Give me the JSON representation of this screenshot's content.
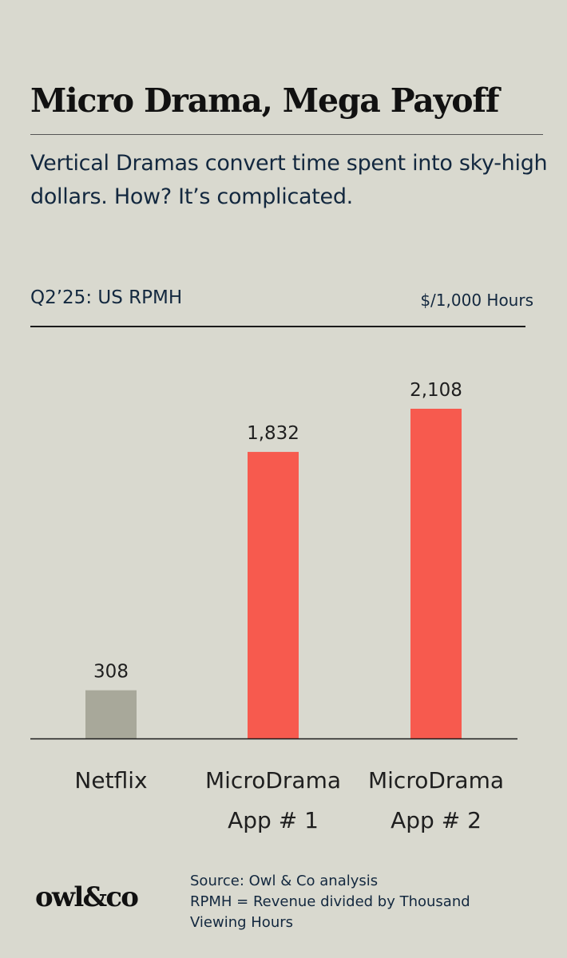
{
  "header": {
    "title": "Micro Drama, Mega Payoff",
    "subtitle": "Vertical Dramas convert time spent into sky-high dollars. How? It’s complicated."
  },
  "chart_data": {
    "type": "bar",
    "title": "Q2’25: US RPMH",
    "unit_label": "$/1,000 Hours",
    "categories": [
      "Netflix",
      "MicroDrama App # 1",
      "MicroDrama App # 2"
    ],
    "category_lines": [
      [
        "Netflix"
      ],
      [
        "MicroDrama",
        "App # 1"
      ],
      [
        "MicroDrama",
        "App # 2"
      ]
    ],
    "values": [
      308,
      1832,
      2108
    ],
    "value_labels": [
      "308",
      "1,832",
      "2,108"
    ],
    "ylim": [
      0,
      2108
    ],
    "colors": [
      "#a8a89a",
      "#f75a4e",
      "#f75a4e"
    ],
    "grid": false
  },
  "footer": {
    "logo": "owl&co",
    "source_lines": [
      "Source: Owl & Co analysis",
      "RPMH = Revenue divided by Thousand",
      "Viewing Hours"
    ]
  }
}
